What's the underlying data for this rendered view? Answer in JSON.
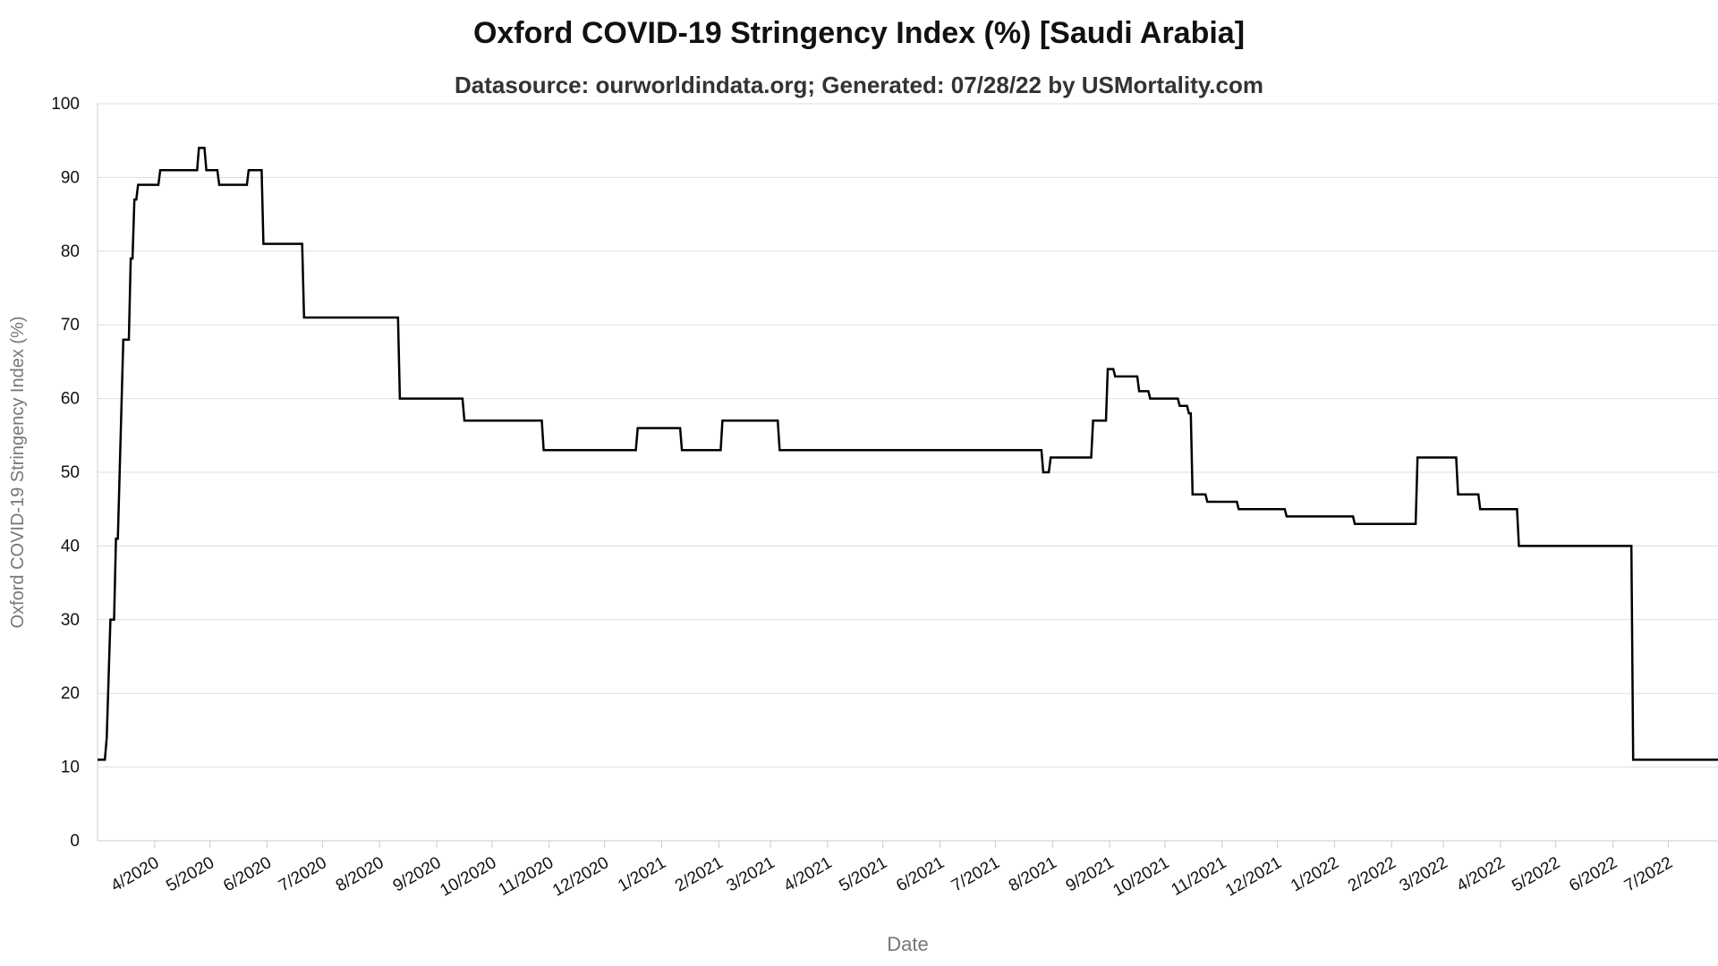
{
  "chart_data": {
    "type": "line",
    "title": "Oxford COVID-19 Stringency Index (%) [Saudi Arabia]",
    "subtitle": "Datasource: ourworldindata.org; Generated: 07/28/22 by USMortality.com",
    "xlabel": "Date",
    "ylabel": "Oxford COVID-19 Stringency Index (%)",
    "ylim": [
      0,
      100
    ],
    "yticks": [
      0,
      10,
      20,
      30,
      40,
      50,
      60,
      70,
      80,
      90,
      100
    ],
    "xlim": [
      "2020-03-01",
      "2022-07-28"
    ],
    "xticks": [
      {
        "date": "2020-04-01",
        "label": "4/2020"
      },
      {
        "date": "2020-05-01",
        "label": "5/2020"
      },
      {
        "date": "2020-06-01",
        "label": "6/2020"
      },
      {
        "date": "2020-07-01",
        "label": "7/2020"
      },
      {
        "date": "2020-08-01",
        "label": "8/2020"
      },
      {
        "date": "2020-09-01",
        "label": "9/2020"
      },
      {
        "date": "2020-10-01",
        "label": "10/2020"
      },
      {
        "date": "2020-11-01",
        "label": "11/2020"
      },
      {
        "date": "2020-12-01",
        "label": "12/2020"
      },
      {
        "date": "2021-01-01",
        "label": "1/2021"
      },
      {
        "date": "2021-02-01",
        "label": "2/2021"
      },
      {
        "date": "2021-03-01",
        "label": "3/2021"
      },
      {
        "date": "2021-04-01",
        "label": "4/2021"
      },
      {
        "date": "2021-05-01",
        "label": "5/2021"
      },
      {
        "date": "2021-06-01",
        "label": "6/2021"
      },
      {
        "date": "2021-07-01",
        "label": "7/2021"
      },
      {
        "date": "2021-08-01",
        "label": "8/2021"
      },
      {
        "date": "2021-09-01",
        "label": "9/2021"
      },
      {
        "date": "2021-10-01",
        "label": "10/2021"
      },
      {
        "date": "2021-11-01",
        "label": "11/2021"
      },
      {
        "date": "2021-12-01",
        "label": "12/2021"
      },
      {
        "date": "2022-01-01",
        "label": "1/2022"
      },
      {
        "date": "2022-02-01",
        "label": "2/2022"
      },
      {
        "date": "2022-03-01",
        "label": "3/2022"
      },
      {
        "date": "2022-04-01",
        "label": "4/2022"
      },
      {
        "date": "2022-05-01",
        "label": "5/2022"
      },
      {
        "date": "2022-06-01",
        "label": "6/2022"
      },
      {
        "date": "2022-07-01",
        "label": "7/2022"
      }
    ],
    "grid": true,
    "legend": "none",
    "colors": {
      "line": "#000000",
      "grid": "#dddddd",
      "axis": "#cccccc",
      "tick_text": "#111111",
      "axis_label": "#777777"
    },
    "series": [
      {
        "points": [
          [
            "2020-03-01",
            11
          ],
          [
            "2020-03-05",
            11
          ],
          [
            "2020-03-06",
            14
          ],
          [
            "2020-03-08",
            30
          ],
          [
            "2020-03-10",
            30
          ],
          [
            "2020-03-11",
            41
          ],
          [
            "2020-03-12",
            41
          ],
          [
            "2020-03-15",
            68
          ],
          [
            "2020-03-18",
            68
          ],
          [
            "2020-03-19",
            79
          ],
          [
            "2020-03-20",
            79
          ],
          [
            "2020-03-21",
            87
          ],
          [
            "2020-03-22",
            87
          ],
          [
            "2020-03-23",
            89
          ],
          [
            "2020-04-03",
            89
          ],
          [
            "2020-04-04",
            91
          ],
          [
            "2020-04-24",
            91
          ],
          [
            "2020-04-25",
            94
          ],
          [
            "2020-04-28",
            94
          ],
          [
            "2020-04-29",
            91
          ],
          [
            "2020-05-05",
            91
          ],
          [
            "2020-05-06",
            89
          ],
          [
            "2020-05-21",
            89
          ],
          [
            "2020-05-22",
            91
          ],
          [
            "2020-05-29",
            91
          ],
          [
            "2020-05-30",
            81
          ],
          [
            "2020-06-20",
            81
          ],
          [
            "2020-06-21",
            71
          ],
          [
            "2020-08-11",
            71
          ],
          [
            "2020-08-12",
            60
          ],
          [
            "2020-09-15",
            60
          ],
          [
            "2020-09-16",
            57
          ],
          [
            "2020-10-28",
            57
          ],
          [
            "2020-10-29",
            53
          ],
          [
            "2020-12-18",
            53
          ],
          [
            "2020-12-19",
            56
          ],
          [
            "2021-01-11",
            56
          ],
          [
            "2021-01-12",
            53
          ],
          [
            "2021-02-02",
            53
          ],
          [
            "2021-02-03",
            57
          ],
          [
            "2021-03-05",
            57
          ],
          [
            "2021-03-06",
            53
          ],
          [
            "2021-07-26",
            53
          ],
          [
            "2021-07-27",
            50
          ],
          [
            "2021-07-30",
            50
          ],
          [
            "2021-07-31",
            52
          ],
          [
            "2021-08-22",
            52
          ],
          [
            "2021-08-23",
            57
          ],
          [
            "2021-08-30",
            57
          ],
          [
            "2021-08-31",
            64
          ],
          [
            "2021-09-03",
            64
          ],
          [
            "2021-09-04",
            63
          ],
          [
            "2021-09-16",
            63
          ],
          [
            "2021-09-17",
            61
          ],
          [
            "2021-09-22",
            61
          ],
          [
            "2021-09-23",
            60
          ],
          [
            "2021-10-08",
            60
          ],
          [
            "2021-10-09",
            59
          ],
          [
            "2021-10-13",
            59
          ],
          [
            "2021-10-14",
            58
          ],
          [
            "2021-10-15",
            58
          ],
          [
            "2021-10-16",
            47
          ],
          [
            "2021-10-23",
            47
          ],
          [
            "2021-10-24",
            46
          ],
          [
            "2021-11-09",
            46
          ],
          [
            "2021-11-10",
            45
          ],
          [
            "2021-12-05",
            45
          ],
          [
            "2021-12-06",
            44
          ],
          [
            "2022-01-11",
            44
          ],
          [
            "2022-01-12",
            43
          ],
          [
            "2022-02-14",
            43
          ],
          [
            "2022-02-15",
            52
          ],
          [
            "2022-03-08",
            52
          ],
          [
            "2022-03-09",
            47
          ],
          [
            "2022-03-20",
            47
          ],
          [
            "2022-03-21",
            45
          ],
          [
            "2022-04-10",
            45
          ],
          [
            "2022-04-11",
            40
          ],
          [
            "2022-06-11",
            40
          ],
          [
            "2022-06-12",
            11
          ],
          [
            "2022-07-28",
            11
          ]
        ]
      }
    ]
  }
}
